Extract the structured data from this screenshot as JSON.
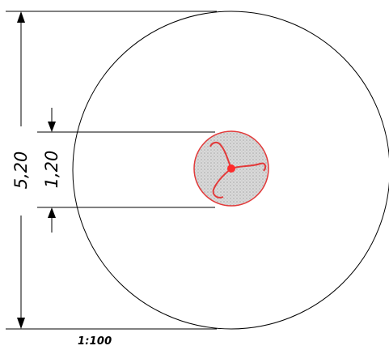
{
  "dimensions": {
    "outer_diameter": "5,20",
    "inner_diameter": "1,20"
  },
  "scale": "1:100",
  "colors": {
    "line": "#000000",
    "tree_outline": "#e23a3a",
    "tree_fill": "#cfcfcf",
    "tree_center": "#ff2a2a"
  }
}
